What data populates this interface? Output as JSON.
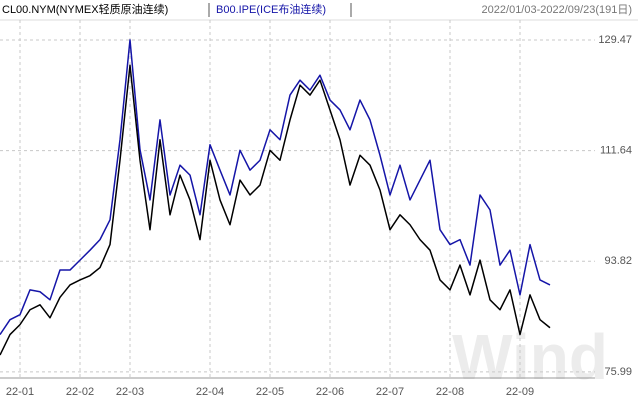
{
  "chart_data": {
    "type": "line",
    "subtitle": "2022/01/03-2022/09/23(191日)",
    "watermark": "Wind",
    "categories": [
      null,
      null,
      "22-01",
      null,
      null,
      null,
      null,
      null,
      "22-02",
      null,
      null,
      null,
      null,
      "22-03",
      null,
      null,
      null,
      null,
      null,
      null,
      null,
      "22-04",
      null,
      null,
      null,
      null,
      null,
      "22-05",
      null,
      null,
      null,
      null,
      null,
      "22-06",
      null,
      null,
      null,
      null,
      null,
      "22-07",
      null,
      null,
      null,
      null,
      null,
      "22-08",
      null,
      null,
      null,
      null,
      null,
      null,
      "22-09",
      null,
      null,
      null
    ],
    "series": [
      {
        "name": "CL00.NYM(NYMEX轻质原油连续)",
        "color": "#000000",
        "values": [
          78.7,
          82.0,
          83.6,
          86.0,
          86.8,
          84.7,
          88.0,
          90.0,
          90.8,
          91.5,
          92.8,
          96.5,
          110.1,
          125.4,
          110.1,
          98.9,
          113.4,
          101.3,
          107.7,
          103.7,
          97.3,
          110.1,
          103.7,
          99.7,
          106.9,
          104.5,
          106.1,
          111.7,
          110.1,
          116.6,
          122.2,
          120.6,
          123.0,
          118.2,
          113.4,
          106.1,
          110.9,
          109.3,
          105.3,
          98.9,
          101.3,
          99.7,
          97.3,
          95.6,
          90.8,
          89.2,
          93.2,
          88.4,
          94.0,
          87.6,
          86.0,
          89.2,
          82.0,
          88.4,
          84.4,
          83.1
        ]
      },
      {
        "name": "B00.IPE(ICE布油连续)",
        "color": "#1515a8",
        "values": [
          82.0,
          84.4,
          85.2,
          89.2,
          88.9,
          87.6,
          92.4,
          92.4,
          94.0,
          95.6,
          97.3,
          100.5,
          113.4,
          129.5,
          111.8,
          103.7,
          116.6,
          104.5,
          109.3,
          107.7,
          101.3,
          112.6,
          108.5,
          104.5,
          111.7,
          108.5,
          110.1,
          115.0,
          113.4,
          120.6,
          123.0,
          121.4,
          123.8,
          119.8,
          118.2,
          115.0,
          119.8,
          116.6,
          110.9,
          104.5,
          109.3,
          103.7,
          106.9,
          110.1,
          98.9,
          96.5,
          97.3,
          93.2,
          104.5,
          102.1,
          93.2,
          95.6,
          88.4,
          96.5,
          90.8,
          90.0
        ]
      }
    ],
    "ylim": [
      75.0,
      132.7
    ],
    "yticks": [
      75.99,
      93.82,
      111.64,
      129.47
    ],
    "grid": true
  }
}
